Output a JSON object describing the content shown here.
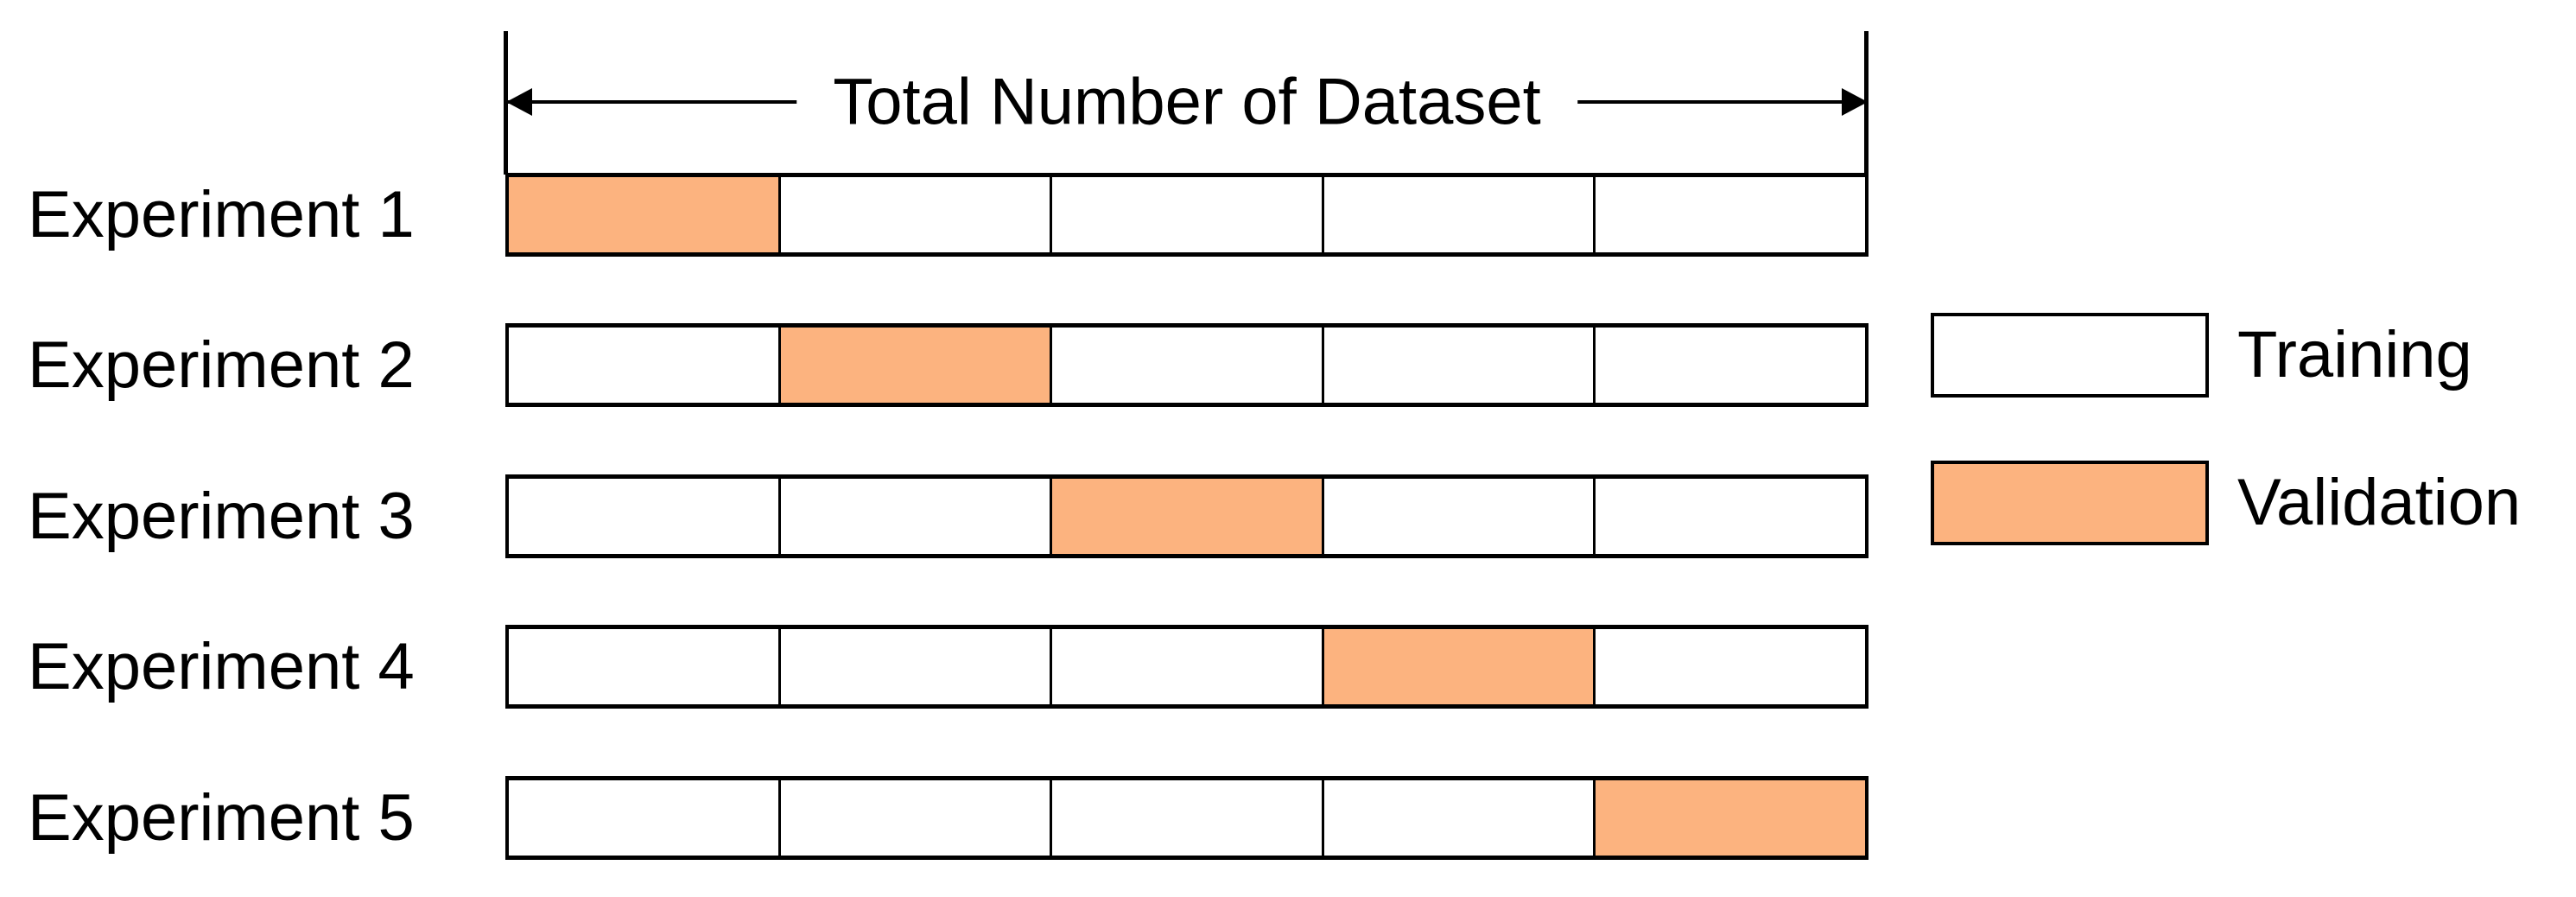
{
  "diagram": {
    "title": "Total Number of Dataset"
  },
  "folds_per_experiment": 5,
  "experiments": [
    {
      "label": "Experiment 1",
      "validation_fold_index": 0
    },
    {
      "label": "Experiment 2",
      "validation_fold_index": 1
    },
    {
      "label": "Experiment 3",
      "validation_fold_index": 2
    },
    {
      "label": "Experiment 4",
      "validation_fold_index": 3
    },
    {
      "label": "Experiment 5",
      "validation_fold_index": 4
    }
  ],
  "legend": {
    "items": [
      {
        "label": "Training",
        "swatch_color": "#FFFFFF"
      },
      {
        "label": "Validation",
        "swatch_color": "#FCB37F"
      }
    ]
  },
  "colors": {
    "training_fill": "#FFFFFF",
    "validation_fill": "#FCB37F",
    "line": "#000000",
    "background": "#FFFFFF"
  }
}
